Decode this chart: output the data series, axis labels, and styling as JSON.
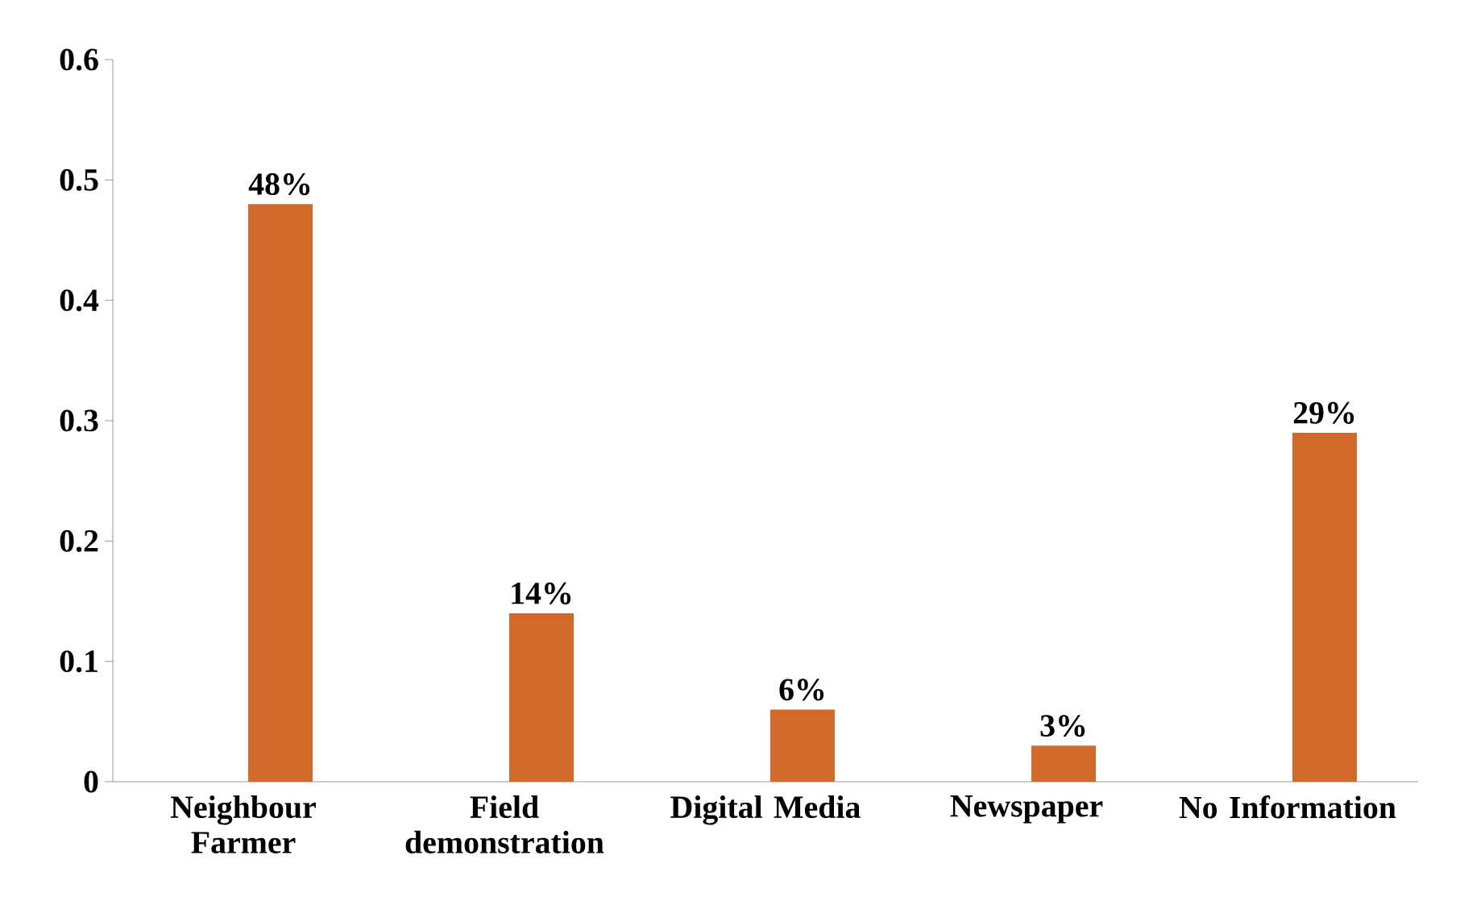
{
  "chart_data": {
    "type": "bar",
    "categories": [
      "Neighbour Farmer",
      "Field demonstration",
      "Digital Media",
      "Newspaper",
      "No Information"
    ],
    "values": [
      0.48,
      0.14,
      0.06,
      0.03,
      0.29
    ],
    "value_labels": [
      "48%",
      "14%",
      "6%",
      "3%",
      "29%"
    ],
    "color": "#d2692a",
    "ylim": [
      0,
      0.6
    ],
    "yticks": [
      0,
      0.1,
      0.2,
      0.3,
      0.4,
      0.5,
      0.6
    ]
  }
}
